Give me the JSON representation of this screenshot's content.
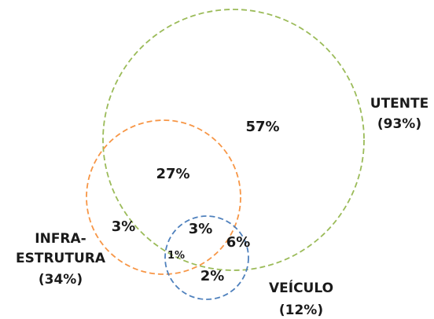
{
  "sets": {
    "utente": {
      "line1": "UTENTE",
      "line2": "(93%)",
      "color": "#9bbb59"
    },
    "infra": {
      "line1": "INFRA-",
      "line2": "ESTRUTURA",
      "line3": "(34%)",
      "color": "#f79646"
    },
    "veiculo": {
      "line1": "VEÍCULO",
      "line2": "(12%)",
      "color": "#4f81bd"
    }
  },
  "regions": {
    "utente_only": "57%",
    "utente_infra": "27%",
    "infra_only": "3%",
    "utente_infra_veiculo": "3%",
    "utente_veiculo": "6%",
    "infra_veiculo": "1%",
    "veiculo_only": "2%"
  }
}
